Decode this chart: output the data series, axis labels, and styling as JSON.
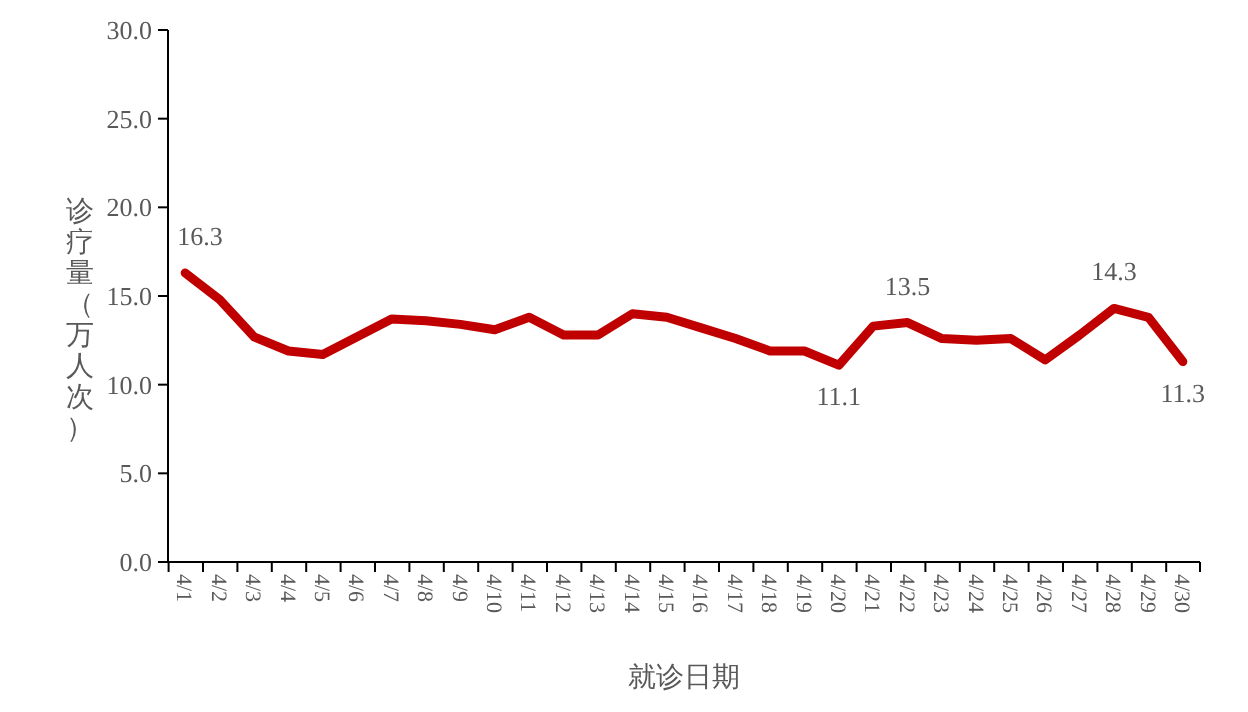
{
  "chart_data": {
    "type": "line",
    "xlabel": "就诊日期",
    "ylabel": "诊疗量（万人次）",
    "categories": [
      "4/1",
      "4/2",
      "4/3",
      "4/4",
      "4/5",
      "4/6",
      "4/7",
      "4/8",
      "4/9",
      "4/10",
      "4/11",
      "4/12",
      "4/13",
      "4/14",
      "4/15",
      "4/16",
      "4/17",
      "4/18",
      "4/19",
      "4/20",
      "4/21",
      "4/22",
      "4/23",
      "4/24",
      "4/25",
      "4/26",
      "4/27",
      "4/28",
      "4/29",
      "4/30"
    ],
    "series": [
      {
        "color": "#c00000",
        "values": [
          16.3,
          14.8,
          12.7,
          11.9,
          11.7,
          12.7,
          13.7,
          13.6,
          13.4,
          13.1,
          13.8,
          12.8,
          12.8,
          14.0,
          13.8,
          13.2,
          12.6,
          11.9,
          11.9,
          11.1,
          13.3,
          13.5,
          12.6,
          12.5,
          12.6,
          11.4,
          12.8,
          14.3,
          13.8,
          11.3
        ]
      }
    ],
    "annotations": [
      {
        "text": "16.3",
        "x": "4/1",
        "y": 16.3
      },
      {
        "text": "11.1",
        "x": "4/20",
        "y": 11.1
      },
      {
        "text": "13.5",
        "x": "4/22",
        "y": 13.5
      },
      {
        "text": "14.3",
        "x": "4/28",
        "y": 14.3
      },
      {
        "text": "11.3",
        "x": "4/30",
        "y": 11.3
      }
    ],
    "ylim": [
      0,
      30
    ],
    "yticks": [
      {
        "value": 0,
        "label": "0.0"
      },
      {
        "value": 5,
        "label": "5.0"
      },
      {
        "value": 10,
        "label": "10.0"
      },
      {
        "value": 15,
        "label": "15.0"
      },
      {
        "value": 20,
        "label": "20.0"
      },
      {
        "value": 25,
        "label": "25.0"
      },
      {
        "value": 30,
        "label": "30.0"
      }
    ],
    "grid": false,
    "marker": "none",
    "line_style": "solid"
  }
}
